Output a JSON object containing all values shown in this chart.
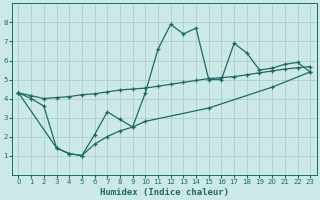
{
  "title": "",
  "xlabel": "Humidex (Indice chaleur)",
  "xlim": [
    -0.5,
    23.5
  ],
  "ylim": [
    0,
    9
  ],
  "xticks": [
    0,
    1,
    2,
    3,
    4,
    5,
    6,
    7,
    8,
    9,
    10,
    11,
    12,
    13,
    14,
    15,
    16,
    17,
    18,
    19,
    20,
    21,
    22,
    23
  ],
  "yticks": [
    1,
    2,
    3,
    4,
    5,
    6,
    7,
    8
  ],
  "bg_color": "#cce9e7",
  "grid_color": "#aacfcd",
  "line_color": "#1a6b63",
  "line1_x": [
    0,
    1,
    2,
    3,
    4,
    5,
    6,
    7,
    8,
    9,
    10,
    11,
    12,
    13,
    14,
    15,
    16,
    17,
    18,
    19,
    20,
    21,
    22,
    23
  ],
  "line1_y": [
    4.3,
    4.0,
    3.6,
    1.4,
    1.1,
    1.0,
    2.1,
    3.3,
    2.9,
    2.5,
    4.3,
    6.6,
    7.9,
    7.4,
    7.7,
    5.0,
    5.0,
    6.9,
    6.4,
    5.5,
    5.6,
    5.8,
    5.9,
    5.4
  ],
  "line2_x": [
    0,
    1,
    2,
    3,
    4,
    5,
    6,
    7,
    8,
    9,
    10,
    11,
    12,
    13,
    14,
    15,
    16,
    17,
    18,
    19,
    20,
    21,
    22,
    23
  ],
  "line2_y": [
    4.3,
    4.15,
    4.0,
    4.05,
    4.1,
    4.2,
    4.25,
    4.35,
    4.45,
    4.5,
    4.55,
    4.65,
    4.75,
    4.85,
    4.95,
    5.05,
    5.1,
    5.15,
    5.25,
    5.35,
    5.45,
    5.55,
    5.62,
    5.68
  ],
  "line3_x": [
    0,
    3,
    4,
    5,
    6,
    7,
    8,
    9,
    10,
    15,
    20,
    23
  ],
  "line3_y": [
    4.3,
    1.4,
    1.1,
    1.0,
    1.6,
    2.0,
    2.3,
    2.5,
    2.8,
    3.5,
    4.6,
    5.4
  ]
}
